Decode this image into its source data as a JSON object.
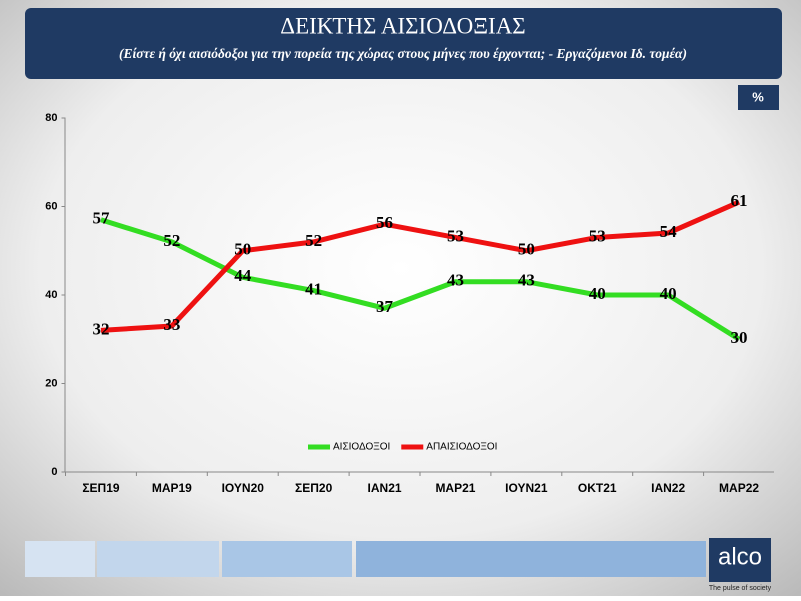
{
  "chart_data": {
    "type": "line",
    "title": "ΔΕΙΚΤΗΣ ΑΙΣΙΟΔΟΞΙΑΣ",
    "subtitle": "(Είστε ή όχι αισιόδοξοι για την πορεία της χώρας στους  μήνες που έρχονται; - Εργαζόμενοι Ιδ. τομέα)",
    "unit": "%",
    "categories": [
      "ΣΕΠ19",
      "ΜΑΡ19",
      "ΙΟΥΝ20",
      "ΣΕΠ20",
      "ΙΑΝ21",
      "ΜΑΡ21",
      "ΙΟΥΝ21",
      "ΟΚΤ21",
      "ΙΑΝ22",
      "ΜΑΡ22"
    ],
    "series": [
      {
        "name": "ΑΙΣΙΟΔΟΞΟΙ",
        "color": "#33dd22",
        "values": [
          57,
          52,
          44,
          41,
          37,
          43,
          43,
          40,
          40,
          30
        ]
      },
      {
        "name": "ΑΠΑΙΣΙΟΔΟΞΟΙ",
        "color": "#ee1111",
        "values": [
          32,
          33,
          50,
          52,
          56,
          53,
          50,
          53,
          54,
          61
        ]
      }
    ],
    "ylim": [
      0,
      80
    ],
    "yticks": [
      0,
      20,
      40,
      60,
      80
    ],
    "grid": false,
    "legend": "bottom"
  },
  "brand": {
    "name": "alco",
    "tagline": "The pulse of society"
  }
}
